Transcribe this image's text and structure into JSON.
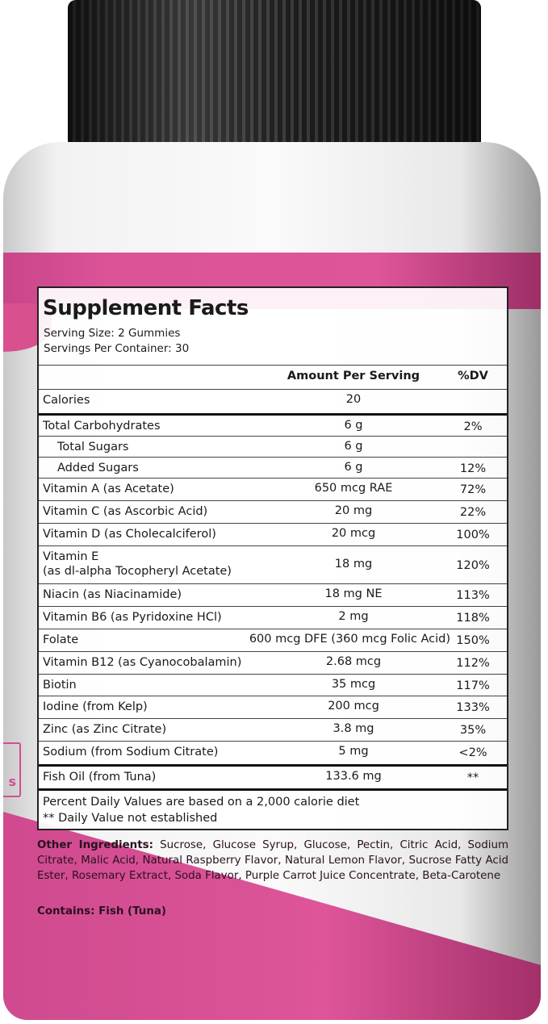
{
  "label": {
    "title": "Supplement Facts",
    "serving_size": "Serving Size: 2 Gummies",
    "servings_per_container": "Servings Per Container: 30",
    "header_amount": "Amount Per Serving",
    "header_dv": "%DV",
    "rows": [
      {
        "name": "Calories",
        "amount": "20",
        "dv": ""
      },
      {
        "name": "Total Carbohydrates",
        "amount": "6 g",
        "dv": "2%"
      },
      {
        "name": "Total Sugars",
        "amount": "6 g",
        "dv": ""
      },
      {
        "name": "Added Sugars",
        "amount": "6 g",
        "dv": "12%"
      },
      {
        "name": "Vitamin A (as Acetate)",
        "amount": "650 mcg RAE",
        "dv": "72%"
      },
      {
        "name": "Vitamin C (as Ascorbic Acid)",
        "amount": "20 mg",
        "dv": "22%"
      },
      {
        "name": "Vitamin D (as Cholecalciferol)",
        "amount": "20 mcg",
        "dv": "100%"
      },
      {
        "name": "Vitamin E",
        "name2": "(as dl-alpha Tocopheryl Acetate)",
        "amount": "18 mg",
        "dv": "120%"
      },
      {
        "name": "Niacin (as Niacinamide)",
        "amount": "18 mg NE",
        "dv": "113%"
      },
      {
        "name": "Vitamin B6 (as Pyridoxine HCl)",
        "amount": "2 mg",
        "dv": "118%"
      },
      {
        "name": "Folate",
        "amount": "600 mcg DFE (360 mcg Folic Acid)",
        "dv": "150%"
      },
      {
        "name": "Vitamin B12 (as Cyanocobalamin)",
        "amount": "2.68 mcg",
        "dv": "112%"
      },
      {
        "name": "Biotin",
        "amount": "35 mcg",
        "dv": "117%"
      },
      {
        "name": "Iodine (from Kelp)",
        "amount": "200 mcg",
        "dv": "133%"
      },
      {
        "name": "Zinc (as Zinc Citrate)",
        "amount": "3.8 mg",
        "dv": "35%"
      },
      {
        "name": "Sodium (from Sodium Citrate)",
        "amount": "5 mg",
        "dv": "<2%"
      },
      {
        "name": "Fish Oil (from Tuna)",
        "amount": "133.6 mg",
        "dv": "**"
      }
    ],
    "footnote1": "Percent Daily Values are based on a 2,000 calorie diet",
    "footnote2": "** Daily Value not established"
  },
  "other_ingredients_label": "Other Ingredients:",
  "other_ingredients": "Sucrose, Glucose Syrup, Glucose, Pectin, Citric Acid, Sodium Citrate, Malic Acid, Natural Raspberry Flavor, Natural Lemon  Flavor, Sucrose Fatty Acid Ester, Rosemary Extract, Soda Flavor, Purple Carrot Juice Concentrate, Beta-Carotene",
  "contains": "Contains: Fish (Tuna)",
  "side_label_fragment": "s",
  "colors": {
    "pink": "#de5599",
    "cap": "#2a2a2a"
  }
}
